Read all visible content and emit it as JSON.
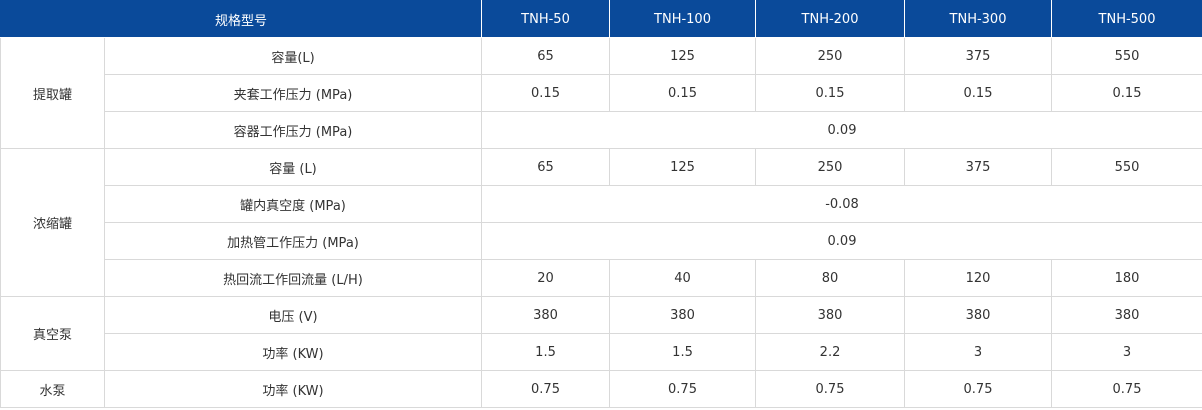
{
  "header": {
    "label": "规格型号",
    "models": [
      "TNH-50",
      "TNH-100",
      "TNH-200",
      "TNH-300",
      "TNH-500"
    ]
  },
  "groups": {
    "extraction": {
      "name": "提取罐",
      "rows": [
        {
          "label": "容量(L)",
          "values": [
            "65",
            "125",
            "250",
            "375",
            "550"
          ]
        },
        {
          "label": "夹套工作压力 (MPa)",
          "values": [
            "0.15",
            "0.15",
            "0.15",
            "0.15",
            "0.15"
          ]
        },
        {
          "label": "容器工作压力 (MPa)",
          "merged": "0.09"
        }
      ]
    },
    "concentration": {
      "name": "浓缩罐",
      "rows": [
        {
          "label": "容量 (L)",
          "values": [
            "65",
            "125",
            "250",
            "375",
            "550"
          ]
        },
        {
          "label": "罐内真空度 (MPa)",
          "merged": "-0.08"
        },
        {
          "label": "加热管工作压力 (MPa)",
          "merged": "0.09"
        },
        {
          "label": "热回流工作回流量 (L/H)",
          "values": [
            "20",
            "40",
            "80",
            "120",
            "180"
          ]
        }
      ]
    },
    "vacuum_pump": {
      "name": "真空泵",
      "rows": [
        {
          "label": "电压 (V)",
          "values": [
            "380",
            "380",
            "380",
            "380",
            "380"
          ]
        },
        {
          "label": "功率 (KW)",
          "values": [
            "1.5",
            "1.5",
            "2.2",
            "3",
            "3"
          ]
        }
      ]
    },
    "water_pump": {
      "name": "水泵",
      "rows": [
        {
          "label": "功率 (KW)",
          "values": [
            "0.75",
            "0.75",
            "0.75",
            "0.75",
            "0.75"
          ]
        }
      ]
    }
  }
}
